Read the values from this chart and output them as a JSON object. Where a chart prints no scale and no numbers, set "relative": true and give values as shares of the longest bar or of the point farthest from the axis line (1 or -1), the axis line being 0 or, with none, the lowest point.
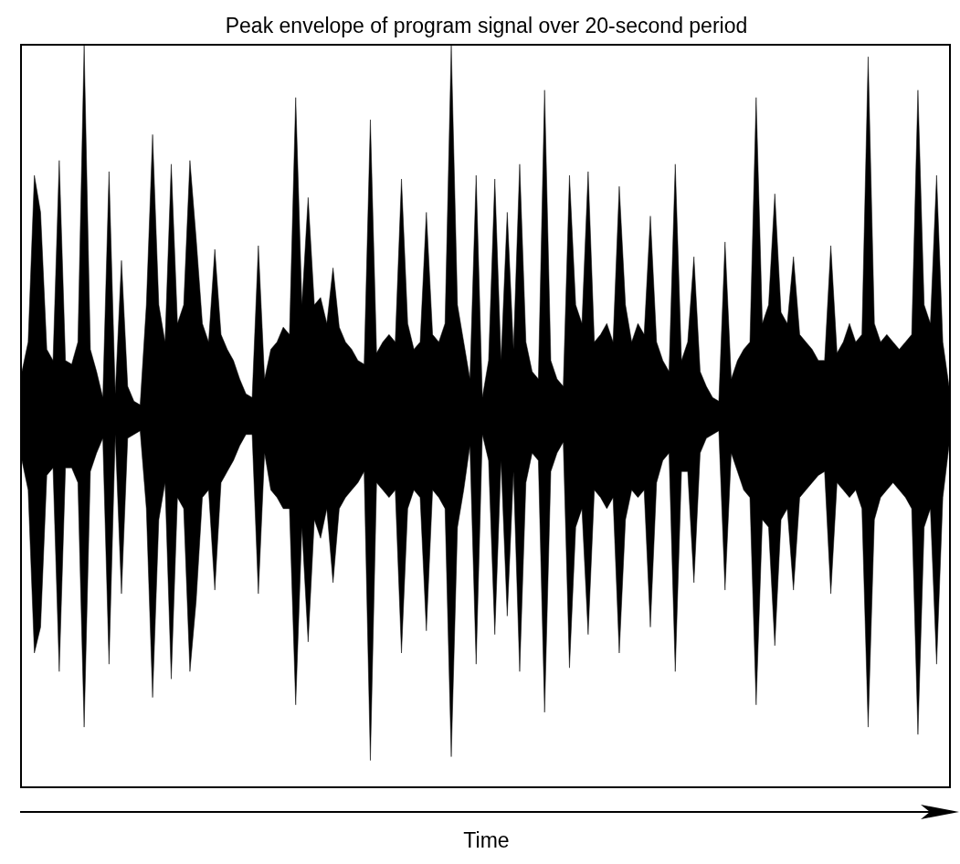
{
  "chart_data": {
    "type": "area",
    "title": "Peak envelope of program signal over 20-second period",
    "xlabel": "Time",
    "relative": true,
    "categories": [
      null,
      null,
      null,
      null,
      null,
      null,
      null,
      null,
      null,
      null,
      null,
      null,
      null,
      null,
      null,
      null,
      null,
      null,
      null,
      null,
      null,
      null,
      null,
      null,
      null,
      null,
      null,
      null,
      null,
      null,
      null,
      null,
      null,
      null,
      null,
      null,
      null,
      null,
      null,
      null,
      null,
      null,
      null,
      null,
      null,
      null,
      null,
      null,
      null,
      null,
      null,
      null,
      null,
      null,
      null,
      null,
      null,
      null,
      null,
      null,
      null,
      null,
      null,
      null,
      null,
      null,
      null,
      null,
      null,
      null,
      null,
      null,
      null,
      null,
      null,
      null,
      null,
      null,
      null,
      null,
      null,
      null,
      null,
      null,
      null,
      null,
      null,
      null,
      null,
      null,
      null,
      null,
      null,
      null,
      null,
      null,
      null,
      null,
      null,
      null,
      null,
      null,
      null,
      null,
      null,
      null,
      null,
      null,
      null,
      null,
      null,
      null,
      null,
      null,
      null,
      null,
      null,
      null,
      null,
      null,
      null,
      null,
      null,
      null,
      null,
      null,
      null,
      null,
      null,
      null,
      null,
      null,
      null,
      null,
      null,
      null,
      null,
      null,
      null,
      null,
      null,
      null,
      null,
      null,
      null,
      null,
      null,
      null,
      null,
      null
    ],
    "series": [
      {
        "color": "#000000",
        "values": [
          0.12,
          0.2,
          0.65,
          0.55,
          0.18,
          0.15,
          0.69,
          0.15,
          0.14,
          0.2,
          1.0,
          0.18,
          0.12,
          0.05,
          0.66,
          0.06,
          0.42,
          0.08,
          0.04,
          0.03,
          0.3,
          0.76,
          0.3,
          0.2,
          0.68,
          0.25,
          0.3,
          0.69,
          0.48,
          0.25,
          0.2,
          0.45,
          0.22,
          0.18,
          0.15,
          0.1,
          0.06,
          0.05,
          0.46,
          0.1,
          0.18,
          0.2,
          0.24,
          0.22,
          0.86,
          0.3,
          0.59,
          0.3,
          0.32,
          0.25,
          0.4,
          0.24,
          0.2,
          0.18,
          0.15,
          0.14,
          0.8,
          0.17,
          0.2,
          0.22,
          0.2,
          0.64,
          0.25,
          0.18,
          0.2,
          0.55,
          0.22,
          0.2,
          0.25,
          1.0,
          0.3,
          0.2,
          0.1,
          0.65,
          0.05,
          0.15,
          0.64,
          0.15,
          0.55,
          0.18,
          0.68,
          0.2,
          0.12,
          0.1,
          0.88,
          0.15,
          0.1,
          0.08,
          0.65,
          0.3,
          0.25,
          0.66,
          0.2,
          0.22,
          0.25,
          0.2,
          0.62,
          0.3,
          0.2,
          0.25,
          0.22,
          0.54,
          0.2,
          0.15,
          0.12,
          0.68,
          0.15,
          0.2,
          0.43,
          0.12,
          0.08,
          0.05,
          0.04,
          0.47,
          0.1,
          0.15,
          0.18,
          0.2,
          0.86,
          0.25,
          0.3,
          0.6,
          0.28,
          0.25,
          0.43,
          0.22,
          0.2,
          0.18,
          0.15,
          0.15,
          0.46,
          0.17,
          0.2,
          0.25,
          0.2,
          0.22,
          0.97,
          0.25,
          0.2,
          0.22,
          0.2,
          0.18,
          0.2,
          0.22,
          0.88,
          0.3,
          0.25,
          0.65,
          0.2,
          0.08
        ]
      },
      {
        "color": "#000000",
        "values": [
          -0.12,
          -0.2,
          -0.64,
          -0.57,
          -0.16,
          -0.14,
          -0.69,
          -0.14,
          -0.14,
          -0.18,
          -0.84,
          -0.15,
          -0.1,
          -0.06,
          -0.67,
          -0.05,
          -0.48,
          -0.06,
          -0.05,
          -0.04,
          -0.25,
          -0.76,
          -0.28,
          -0.18,
          -0.71,
          -0.22,
          -0.25,
          -0.69,
          -0.5,
          -0.22,
          -0.2,
          -0.47,
          -0.18,
          -0.15,
          -0.12,
          -0.08,
          -0.05,
          -0.05,
          -0.48,
          -0.1,
          -0.2,
          -0.22,
          -0.25,
          -0.25,
          -0.78,
          -0.3,
          -0.61,
          -0.28,
          -0.33,
          -0.25,
          -0.45,
          -0.25,
          -0.22,
          -0.2,
          -0.18,
          -0.15,
          -0.93,
          -0.18,
          -0.2,
          -0.22,
          -0.2,
          -0.64,
          -0.25,
          -0.2,
          -0.22,
          -0.58,
          -0.2,
          -0.22,
          -0.25,
          -0.92,
          -0.3,
          -0.2,
          -0.08,
          -0.67,
          -0.05,
          -0.12,
          -0.59,
          -0.12,
          -0.54,
          -0.15,
          -0.69,
          -0.18,
          -0.1,
          -0.12,
          -0.8,
          -0.15,
          -0.1,
          -0.07,
          -0.68,
          -0.3,
          -0.25,
          -0.59,
          -0.2,
          -0.22,
          -0.25,
          -0.22,
          -0.64,
          -0.28,
          -0.2,
          -0.22,
          -0.2,
          -0.57,
          -0.18,
          -0.12,
          -0.1,
          -0.69,
          -0.15,
          -0.15,
          -0.45,
          -0.1,
          -0.06,
          -0.05,
          -0.04,
          -0.47,
          -0.1,
          -0.15,
          -0.2,
          -0.22,
          -0.78,
          -0.28,
          -0.3,
          -0.62,
          -0.28,
          -0.25,
          -0.47,
          -0.22,
          -0.2,
          -0.18,
          -0.16,
          -0.15,
          -0.48,
          -0.18,
          -0.2,
          -0.22,
          -0.2,
          -0.25,
          -0.84,
          -0.28,
          -0.22,
          -0.2,
          -0.18,
          -0.2,
          -0.22,
          -0.25,
          -0.86,
          -0.3,
          -0.25,
          -0.67,
          -0.22,
          -0.08
        ]
      }
    ]
  }
}
